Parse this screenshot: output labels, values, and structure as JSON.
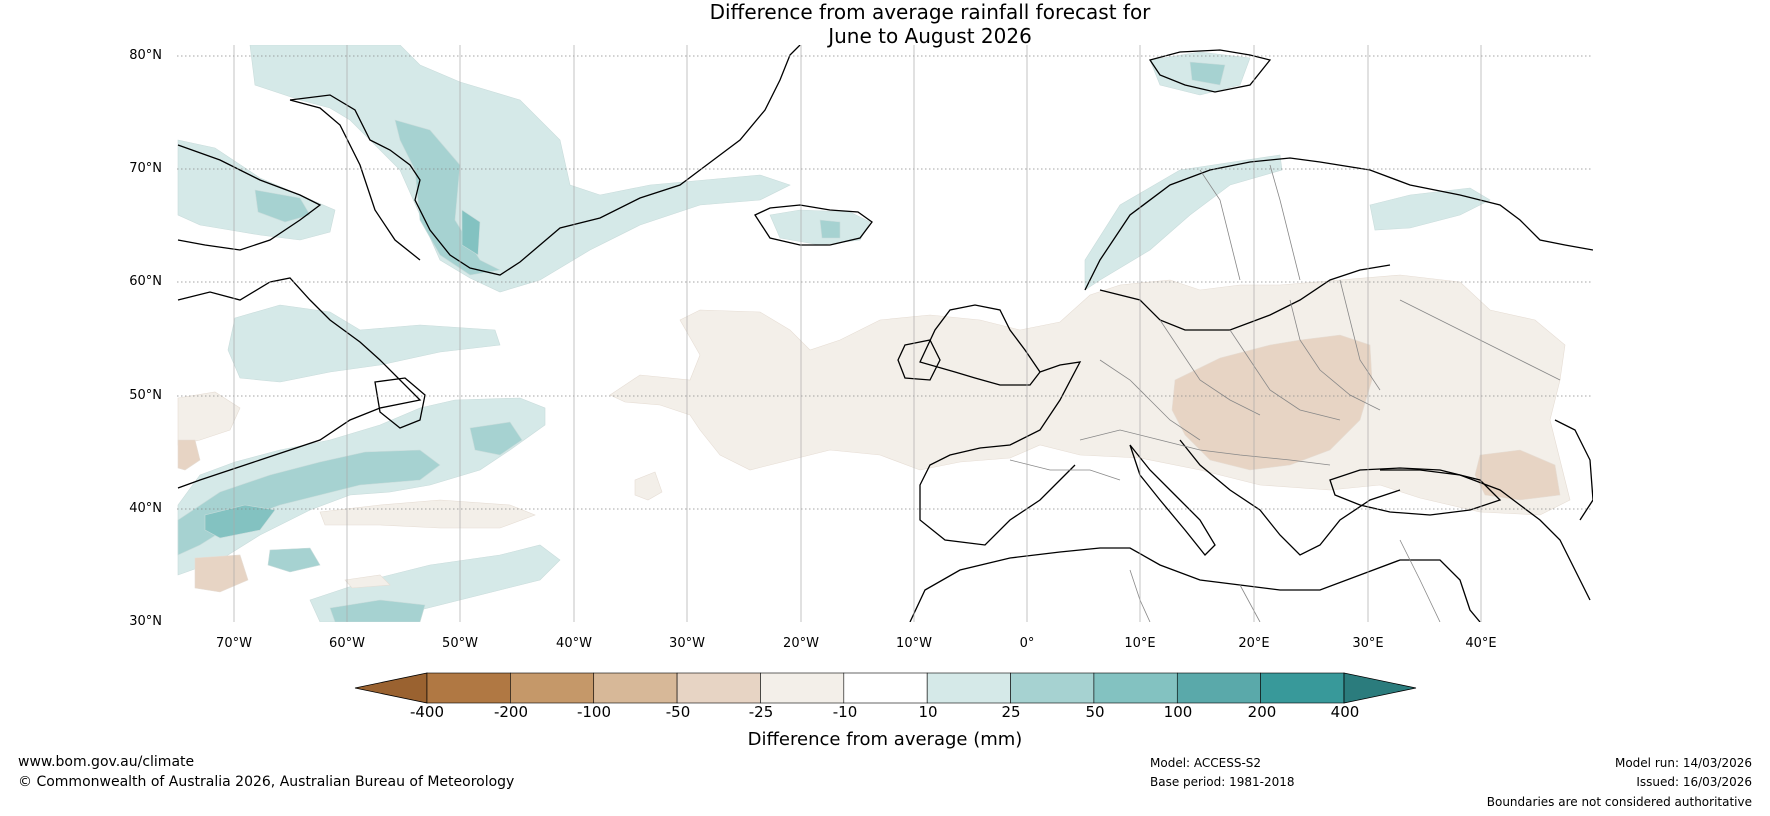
{
  "title": {
    "line1": "Difference from average rainfall forecast for",
    "line2": "June to August 2026"
  },
  "map": {
    "lat_labels": [
      "80°N",
      "70°N",
      "60°N",
      "50°N",
      "40°N",
      "30°N"
    ],
    "lon_labels": [
      "70°W",
      "60°W",
      "50°W",
      "40°W",
      "30°W",
      "20°W",
      "10°W",
      "0°",
      "10°E",
      "20°E",
      "30°E",
      "40°E"
    ],
    "lat_range": [
      30,
      81
    ],
    "lon_range": [
      -75,
      50
    ]
  },
  "colorbar": {
    "ticks": [
      "-400",
      "-200",
      "-100",
      "-50",
      "-25",
      "-10",
      "10",
      "25",
      "50",
      "100",
      "200",
      "400"
    ],
    "colors": [
      "#9a6230",
      "#b07843",
      "#c59869",
      "#d7b898",
      "#e7d4c4",
      "#f3efe9",
      "#ffffff",
      "#d5e9e8",
      "#a6d2d1",
      "#83c2c1",
      "#5aa9aa",
      "#38999a",
      "#2b7c7d"
    ],
    "label": "Difference from average (mm)"
  },
  "footer": {
    "website": "www.bom.gov.au/climate",
    "copyright": "© Commonwealth of Australia 2026, Australian Bureau of Meteorology",
    "model": "Model: ACCESS-S2",
    "base_period": "Base period: 1981-2018",
    "model_run": "Model run: 14/03/2026",
    "issued": "Issued: 16/03/2026",
    "disclaimer": "Boundaries are not considered authoritative"
  }
}
